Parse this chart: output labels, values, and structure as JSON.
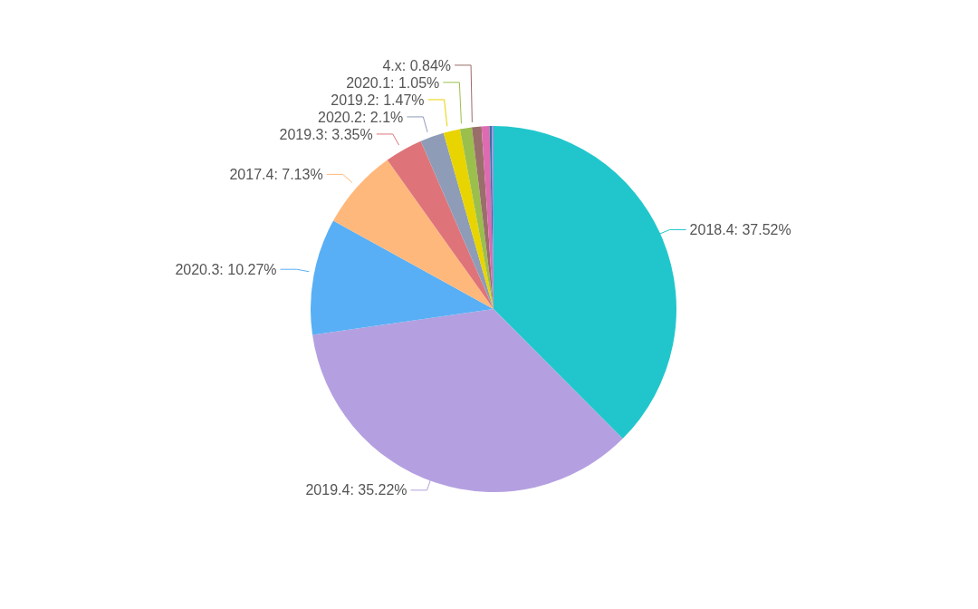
{
  "chart_data": {
    "type": "pie",
    "categories": [
      "2018.4",
      "2019.4",
      "2020.3",
      "2017.4",
      "2019.3",
      "2020.2",
      "2019.2",
      "2020.1",
      "4.x",
      null,
      null,
      null
    ],
    "values": [
      37.52,
      35.22,
      10.27,
      7.13,
      3.35,
      2.1,
      1.47,
      1.05,
      0.84,
      0.7,
      0.2,
      0.15
    ],
    "colors": [
      "#21c6cc",
      "#b4a0e0",
      "#58aff5",
      "#ffb87c",
      "#de7479",
      "#8e9cb8",
      "#e8d400",
      "#9bbf4c",
      "#9a6e6a",
      "#de6bb2",
      "#3d6fa0",
      "#a08ee0"
    ],
    "value_labels": [
      ": 37.52%",
      ": 35.22%",
      ": 10.27%",
      ": 7.13%",
      ": 3.35%",
      ": 2.1%",
      ": 1.47%",
      ": 1.05%",
      ": 0.84%",
      null,
      null,
      null
    ],
    "legend": false
  }
}
